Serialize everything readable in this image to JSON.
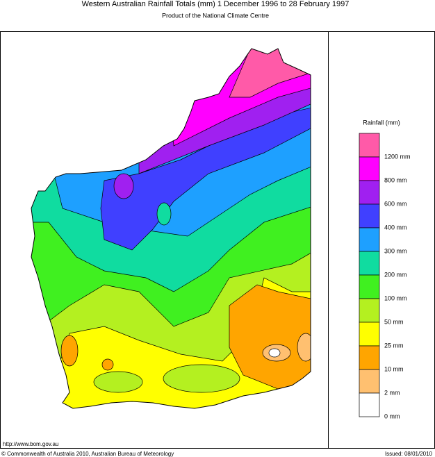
{
  "header": {
    "title": "Western Australian Rainfall Totals (mm) 1 December 1996 to 28 February 1997",
    "subtitle": "Product of the National Climate Centre"
  },
  "legend": {
    "title": "Rainfall (mm)",
    "colors": [
      "#ff5aa8",
      "#ff00ff",
      "#a020f0",
      "#4040ff",
      "#1ea0ff",
      "#10dca0",
      "#40f020",
      "#b4f020",
      "#ffff00",
      "#ffa500",
      "#ffc070",
      "#ffffff"
    ],
    "labels": [
      "1200 mm",
      "800 mm",
      "600 mm",
      "400 mm",
      "300 mm",
      "200 mm",
      "100 mm",
      "50 mm",
      "25 mm",
      "10 mm",
      "2 mm",
      "0 mm"
    ]
  },
  "footer": {
    "url": "http://www.bom.gov.au",
    "copyright": "© Commonwealth of Australia 2010, Australian Bureau of Meteorology",
    "issued": "Issued: 08/01/2010"
  }
}
